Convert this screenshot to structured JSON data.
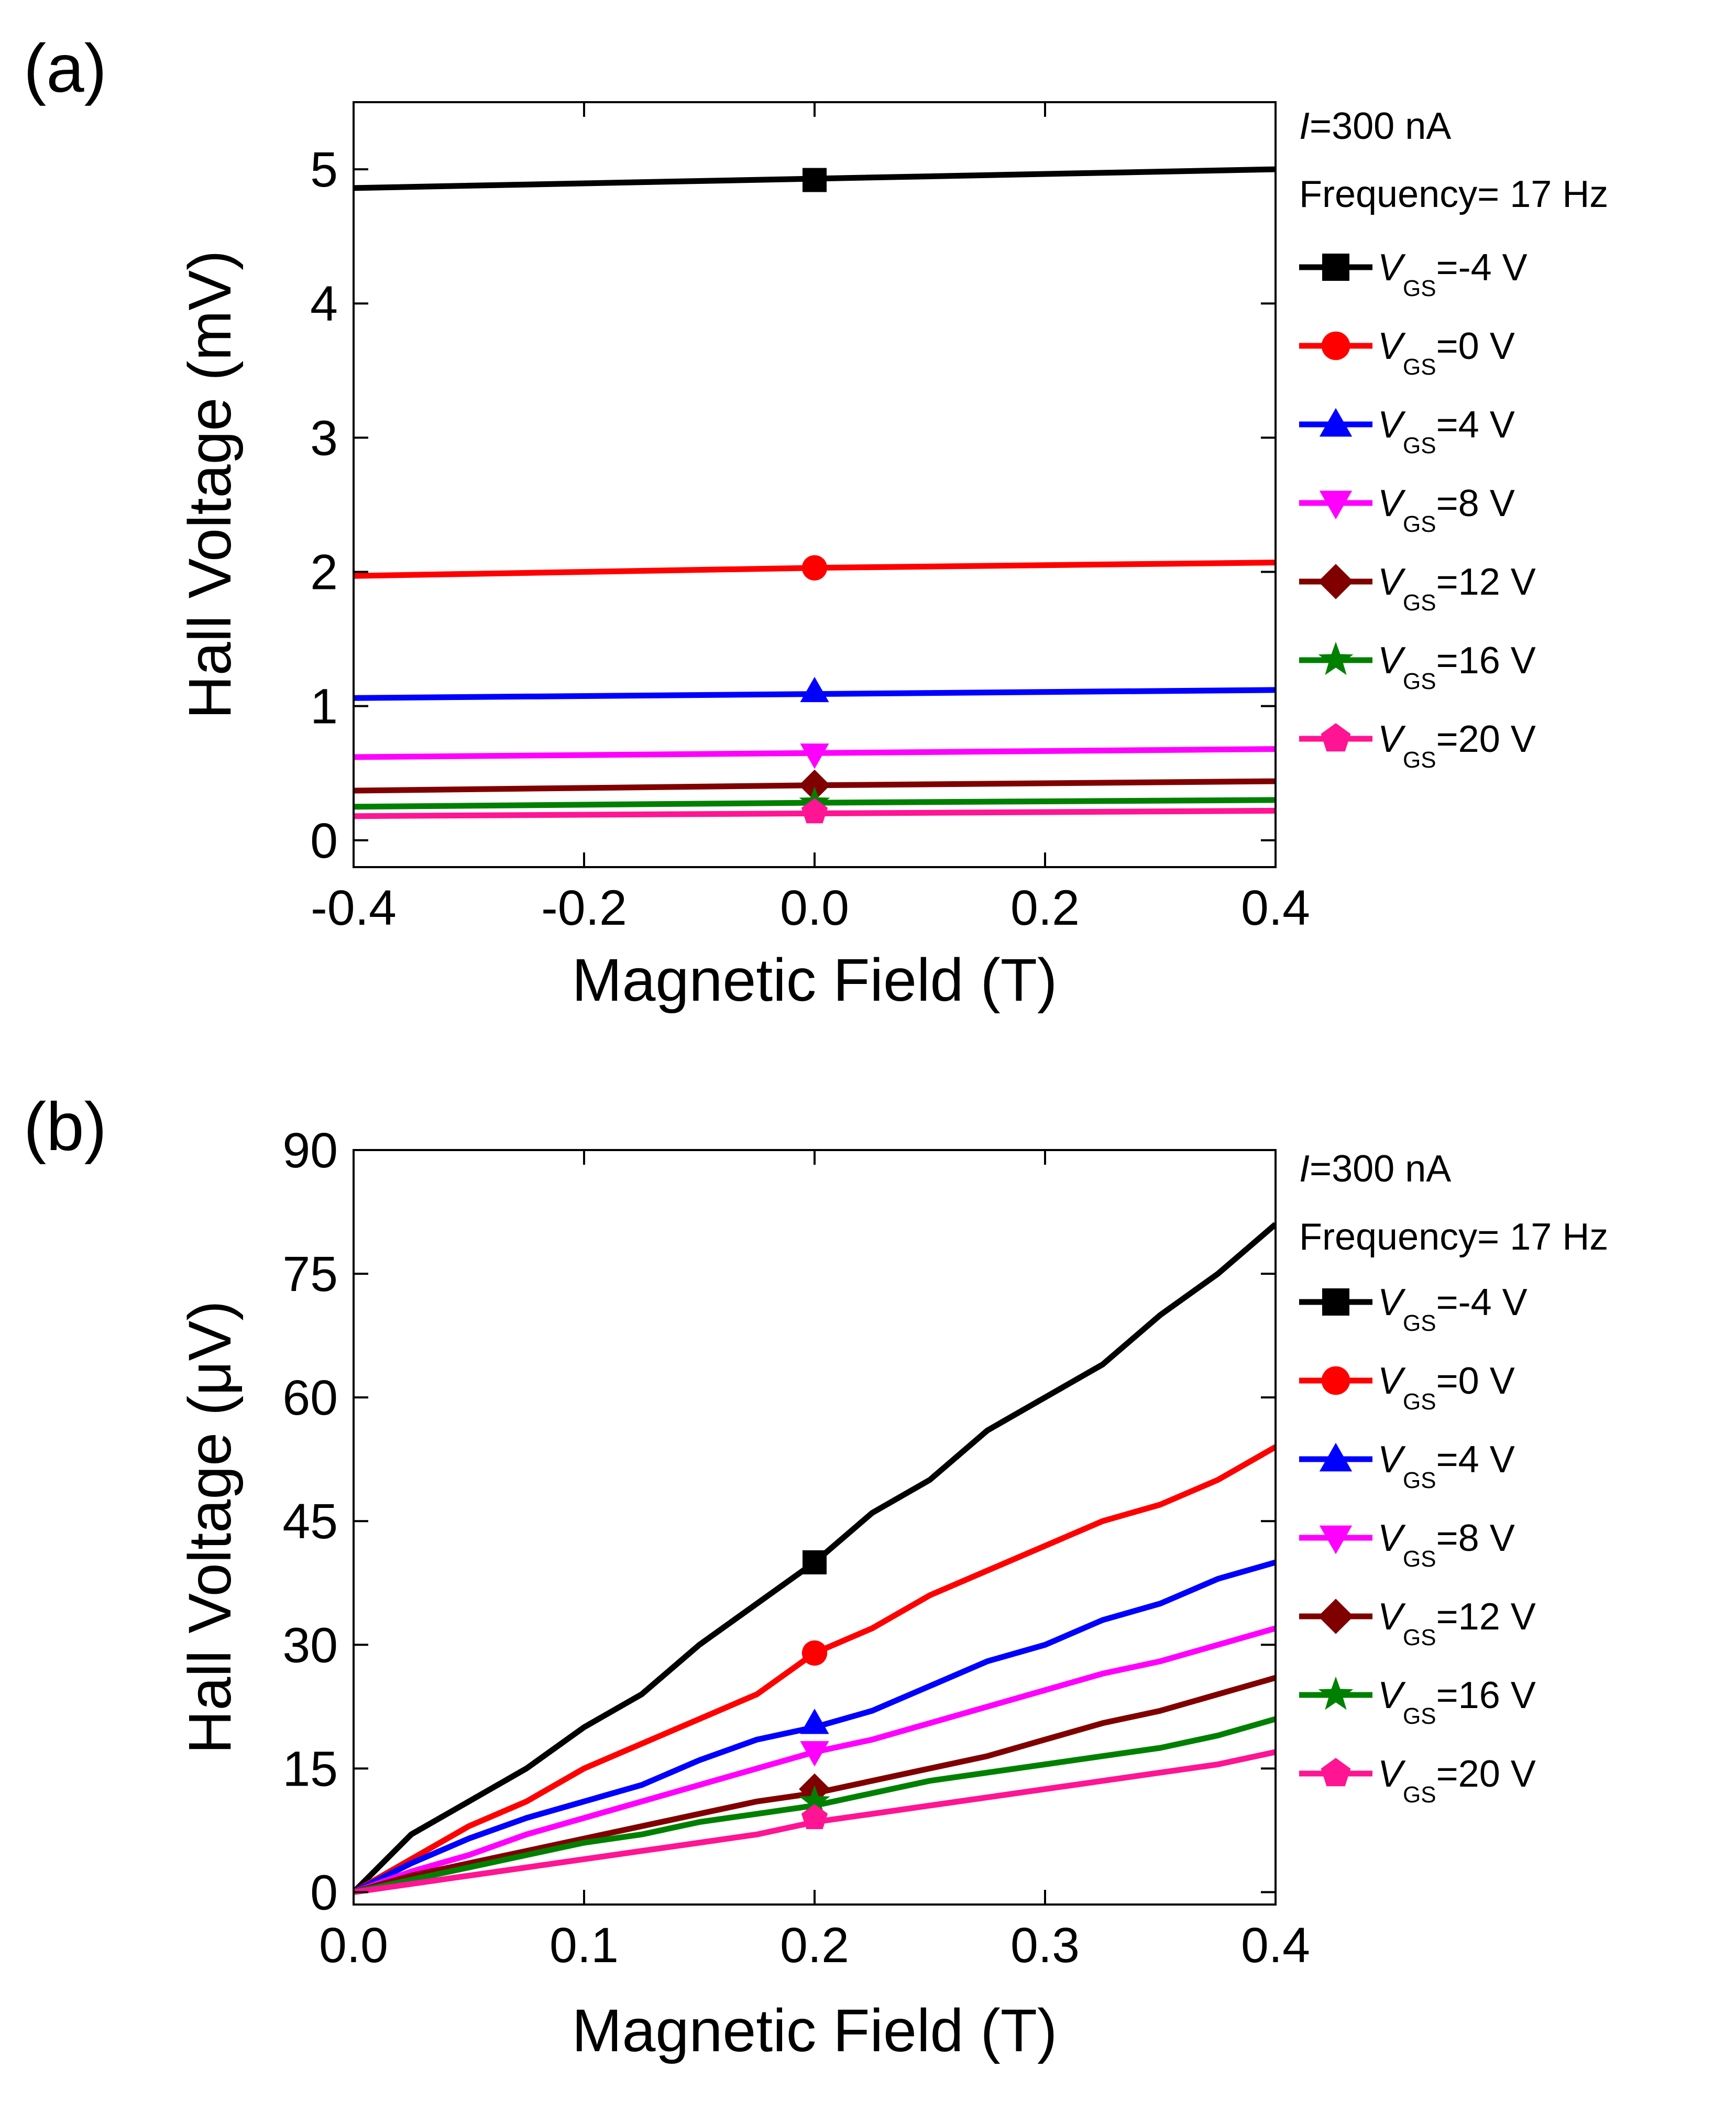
{
  "figure": {
    "panels": [
      {
        "label": "(a)",
        "annotations": [
          "I=300 nA",
          "Frequency= 17 Hz"
        ]
      },
      {
        "label": "(b)",
        "annotations": [
          "I=300 nA",
          "Frequency= 17 Hz"
        ]
      }
    ]
  },
  "colors": {
    "VGS=-4 V": "#000000",
    "VGS=0 V": "#ff0000",
    "VGS=4 V": "#0000ff",
    "VGS=8 V": "#ff00ff",
    "VGS=12 V": "#800000",
    "VGS=16 V": "#008000",
    "VGS=20 V": "#ff1493"
  },
  "chart_data": [
    {
      "type": "line",
      "title": "",
      "xlabel": "Magnetic Field (T)",
      "ylabel": "Hall Voltage (mV)",
      "xlim": [
        -0.4,
        0.4
      ],
      "ylim": [
        -0.2,
        5.5
      ],
      "xticks": [
        -0.4,
        -0.2,
        0.0,
        0.2,
        0.4
      ],
      "xtick_labels": [
        "-0.4",
        "-0.2",
        "0.0",
        "0.2",
        "0.4"
      ],
      "yticks": [
        0,
        1,
        2,
        3,
        4,
        5
      ],
      "ytick_labels": [
        "0",
        "1",
        "2",
        "3",
        "4",
        "5"
      ],
      "legend_position": "outside-right",
      "grid": false,
      "series": [
        {
          "name": "VGS=-4 V",
          "marker": "square",
          "x": [
            -0.4,
            0.0,
            0.4
          ],
          "y": [
            4.86,
            4.93,
            5.0
          ],
          "marker_x": [
            0.0
          ],
          "marker_y": [
            4.92
          ]
        },
        {
          "name": "VGS=0 V",
          "marker": "circle",
          "x": [
            -0.4,
            0.0,
            0.4
          ],
          "y": [
            1.97,
            2.03,
            2.07
          ],
          "marker_x": [
            0.0
          ],
          "marker_y": [
            2.03
          ]
        },
        {
          "name": "VGS=4 V",
          "marker": "triangle-up",
          "x": [
            -0.4,
            0.0,
            0.4
          ],
          "y": [
            1.06,
            1.09,
            1.12
          ],
          "marker_x": [
            0.0
          ],
          "marker_y": [
            1.11
          ]
        },
        {
          "name": "VGS=8 V",
          "marker": "triangle-down",
          "x": [
            -0.4,
            0.0,
            0.4
          ],
          "y": [
            0.62,
            0.65,
            0.68
          ],
          "marker_x": [
            0.0
          ],
          "marker_y": [
            0.64
          ]
        },
        {
          "name": "VGS=12 V",
          "marker": "diamond",
          "x": [
            -0.4,
            0.0,
            0.4
          ],
          "y": [
            0.37,
            0.41,
            0.44
          ],
          "marker_x": [
            0.0
          ],
          "marker_y": [
            0.41
          ]
        },
        {
          "name": "VGS=16 V",
          "marker": "star",
          "x": [
            -0.4,
            0.0,
            0.4
          ],
          "y": [
            0.25,
            0.28,
            0.3
          ],
          "marker_x": [
            0.0
          ],
          "marker_y": [
            0.28
          ]
        },
        {
          "name": "VGS=20 V",
          "marker": "pentagon",
          "x": [
            -0.4,
            0.0,
            0.4
          ],
          "y": [
            0.18,
            0.2,
            0.22
          ],
          "marker_x": [
            0.0
          ],
          "marker_y": [
            0.21
          ]
        }
      ]
    },
    {
      "type": "line",
      "title": "",
      "xlabel": "Magnetic Field (T)",
      "ylabel": "Hall Voltage (μV)",
      "xlim": [
        0.0,
        0.4
      ],
      "ylim": [
        -1.5,
        90
      ],
      "xticks": [
        0.0,
        0.1,
        0.2,
        0.3,
        0.4
      ],
      "xtick_labels": [
        "0.0",
        "0.1",
        "0.2",
        "0.3",
        "0.4"
      ],
      "yticks": [
        0,
        15,
        30,
        45,
        60,
        75,
        90
      ],
      "ytick_labels": [
        "0",
        "15",
        "30",
        "45",
        "60",
        "75",
        "90"
      ],
      "legend_position": "outside-right",
      "grid": false,
      "series": [
        {
          "name": "VGS=-4 V",
          "marker": "square",
          "x": [
            0.0,
            0.025,
            0.05,
            0.075,
            0.1,
            0.125,
            0.15,
            0.175,
            0.2,
            0.225,
            0.25,
            0.275,
            0.3,
            0.325,
            0.35,
            0.375,
            0.4
          ],
          "y": [
            0,
            7,
            11,
            15,
            20,
            24,
            30,
            35,
            40,
            46,
            50,
            56,
            60,
            64,
            70,
            75,
            81
          ],
          "marker_x": [
            0.2
          ],
          "marker_y": [
            40
          ]
        },
        {
          "name": "VGS=0 V",
          "marker": "circle",
          "x": [
            0.0,
            0.025,
            0.05,
            0.075,
            0.1,
            0.125,
            0.15,
            0.175,
            0.2,
            0.225,
            0.25,
            0.275,
            0.3,
            0.325,
            0.35,
            0.375,
            0.4
          ],
          "y": [
            0,
            4,
            8,
            11,
            15,
            18,
            21,
            24,
            29,
            32,
            36,
            39,
            42,
            45,
            47,
            50,
            54
          ],
          "marker_x": [
            0.2
          ],
          "marker_y": [
            29
          ]
        },
        {
          "name": "VGS=4 V",
          "marker": "triangle-up",
          "x": [
            0.0,
            0.025,
            0.05,
            0.075,
            0.1,
            0.125,
            0.15,
            0.175,
            0.2,
            0.225,
            0.25,
            0.275,
            0.3,
            0.325,
            0.35,
            0.375,
            0.4
          ],
          "y": [
            0,
            3.5,
            6.5,
            9,
            11,
            13,
            16,
            18.5,
            20,
            22,
            25,
            28,
            30,
            33,
            35,
            38,
            40
          ],
          "marker_x": [
            0.2
          ],
          "marker_y": [
            20.5
          ]
        },
        {
          "name": "VGS=8 V",
          "marker": "triangle-down",
          "x": [
            0.0,
            0.025,
            0.05,
            0.075,
            0.1,
            0.125,
            0.15,
            0.175,
            0.2,
            0.225,
            0.25,
            0.275,
            0.3,
            0.325,
            0.35,
            0.375,
            0.4
          ],
          "y": [
            0,
            2.5,
            4.5,
            7,
            9,
            11,
            13,
            15,
            17,
            18.5,
            20.5,
            22.5,
            24.5,
            26.5,
            28,
            30,
            32
          ],
          "marker_x": [
            0.2
          ],
          "marker_y": [
            17
          ]
        },
        {
          "name": "VGS=12 V",
          "marker": "diamond",
          "x": [
            0.0,
            0.025,
            0.05,
            0.075,
            0.1,
            0.125,
            0.15,
            0.175,
            0.2,
            0.225,
            0.25,
            0.275,
            0.3,
            0.325,
            0.35,
            0.375,
            0.4
          ],
          "y": [
            0,
            2,
            3.5,
            5,
            6.5,
            8,
            9.5,
            11,
            12,
            13.5,
            15,
            16.5,
            18.5,
            20.5,
            22,
            24,
            26
          ],
          "marker_x": [
            0.2
          ],
          "marker_y": [
            12.5
          ]
        },
        {
          "name": "VGS=16 V",
          "marker": "star",
          "x": [
            0.0,
            0.025,
            0.05,
            0.075,
            0.1,
            0.125,
            0.15,
            0.175,
            0.2,
            0.225,
            0.25,
            0.275,
            0.3,
            0.325,
            0.35,
            0.375,
            0.4
          ],
          "y": [
            0,
            1.5,
            3,
            4.5,
            6,
            7,
            8.5,
            9.5,
            10.5,
            12,
            13.5,
            14.5,
            15.5,
            16.5,
            17.5,
            19,
            21
          ],
          "marker_x": [
            0.2
          ],
          "marker_y": [
            11
          ]
        },
        {
          "name": "VGS=20 V",
          "marker": "pentagon",
          "x": [
            0.0,
            0.025,
            0.05,
            0.075,
            0.1,
            0.125,
            0.15,
            0.175,
            0.2,
            0.225,
            0.25,
            0.275,
            0.3,
            0.325,
            0.35,
            0.375,
            0.4
          ],
          "y": [
            0,
            1,
            2,
            3,
            4,
            5,
            6,
            7,
            8.5,
            9.5,
            10.5,
            11.5,
            12.5,
            13.5,
            14.5,
            15.5,
            17
          ],
          "marker_x": [
            0.2
          ],
          "marker_y": [
            9
          ]
        }
      ]
    }
  ]
}
